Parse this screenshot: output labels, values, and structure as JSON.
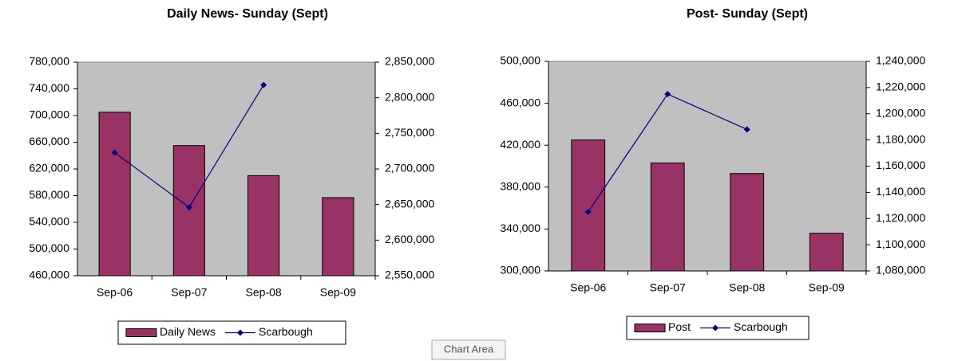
{
  "chart_data": [
    {
      "type": "bar-line",
      "title": "Daily News- Sunday (Sept)",
      "categories": [
        "Sep-06",
        "Sep-07",
        "Sep-08",
        "Sep-09"
      ],
      "series": [
        {
          "name": "Daily News",
          "type": "bar",
          "color": "#993366",
          "values": [
            705000,
            655000,
            610000,
            577000
          ]
        },
        {
          "name": "Scarbough",
          "type": "line",
          "axis": "y2",
          "color": "#000080",
          "values": [
            2723000,
            2646000,
            2818000,
            null
          ]
        }
      ],
      "ylim": [
        460000,
        780000
      ],
      "yticks": [
        {
          "value": 460000,
          "label": "460,000"
        },
        {
          "value": 500000,
          "label": "500,000"
        },
        {
          "value": 540000,
          "label": "540,000"
        },
        {
          "value": 580000,
          "label": "580,000"
        },
        {
          "value": 620000,
          "label": "620,000"
        },
        {
          "value": 660000,
          "label": "660,000"
        },
        {
          "value": 700000,
          "label": "700,000"
        },
        {
          "value": 740000,
          "label": "740,000"
        },
        {
          "value": 780000,
          "label": "780,000"
        }
      ],
      "y2lim": [
        2550000,
        2850000
      ],
      "y2ticks": [
        {
          "value": 2550000,
          "label": "2,550,000"
        },
        {
          "value": 2600000,
          "label": "2,600,000"
        },
        {
          "value": 2650000,
          "label": "2,650,000"
        },
        {
          "value": 2700000,
          "label": "2,700,000"
        },
        {
          "value": 2750000,
          "label": "2,750,000"
        },
        {
          "value": 2800000,
          "label": "2,800,000"
        },
        {
          "value": 2850000,
          "label": "2,850,000"
        }
      ],
      "plot_background": "#c0c0c0",
      "grid": false,
      "legend": "bottom"
    },
    {
      "type": "bar-line",
      "title": "Post- Sunday (Sept)",
      "categories": [
        "Sep-06",
        "Sep-07",
        "Sep-08",
        "Sep-09"
      ],
      "series": [
        {
          "name": "Post",
          "type": "bar",
          "color": "#993366",
          "values": [
            425000,
            403000,
            393000,
            336000
          ]
        },
        {
          "name": "Scarbough",
          "type": "line",
          "axis": "y2",
          "color": "#000080",
          "values": [
            1125000,
            1215000,
            1188000,
            null
          ]
        }
      ],
      "ylim": [
        300000,
        500000
      ],
      "yticks": [
        {
          "value": 300000,
          "label": "300,000"
        },
        {
          "value": 340000,
          "label": "340,000"
        },
        {
          "value": 380000,
          "label": "380,000"
        },
        {
          "value": 420000,
          "label": "420,000"
        },
        {
          "value": 460000,
          "label": "460,000"
        },
        {
          "value": 500000,
          "label": "500,000"
        }
      ],
      "y2lim": [
        1080000,
        1240000
      ],
      "y2ticks": [
        {
          "value": 1080000,
          "label": "1,080,000"
        },
        {
          "value": 1100000,
          "label": "1,100,000"
        },
        {
          "value": 1120000,
          "label": "1,120,000"
        },
        {
          "value": 1140000,
          "label": "1,140,000"
        },
        {
          "value": 1160000,
          "label": "1,160,000"
        },
        {
          "value": 1180000,
          "label": "1,180,000"
        },
        {
          "value": 1200000,
          "label": "1,200,000"
        },
        {
          "value": 1220000,
          "label": "1,220,000"
        },
        {
          "value": 1240000,
          "label": "1,240,000"
        }
      ],
      "plot_background": "#c0c0c0",
      "grid": false,
      "legend": "bottom"
    }
  ],
  "tooltip": "Chart Area"
}
